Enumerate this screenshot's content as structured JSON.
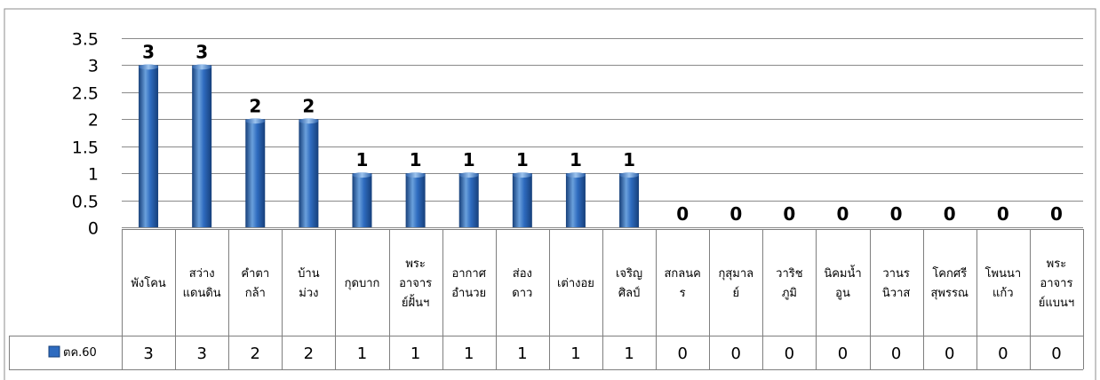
{
  "chart_data": {
    "type": "bar",
    "categories": [
      [
        "พังโคน"
      ],
      [
        "สว่าง",
        "แดนดิน"
      ],
      [
        "คำตา",
        "กล้า"
      ],
      [
        "บ้าน",
        "ม่วง"
      ],
      [
        "กุดบาก"
      ],
      [
        "พระ",
        "อาจาร",
        "ย์ฝั้นฯ"
      ],
      [
        "อากาศ",
        "อำนวย"
      ],
      [
        "ส่อง",
        "ดาว"
      ],
      [
        "เต่างอย"
      ],
      [
        "เจริญ",
        "ศิลป์"
      ],
      [
        "สกลนค",
        "ร"
      ],
      [
        "กุสุมาล",
        "ย์"
      ],
      [
        "วาริช",
        "ภูมิ"
      ],
      [
        "นิคมน้ำ",
        "อูน"
      ],
      [
        "วานร",
        "นิวาส"
      ],
      [
        "โคกศรี",
        "สุพรรณ"
      ],
      [
        "โพนนา",
        "แก้ว"
      ],
      [
        "พระ",
        "อาจาร",
        "ย์แบนฯ"
      ]
    ],
    "series": [
      {
        "name": "ตค.60",
        "values": [
          3,
          3,
          2,
          2,
          1,
          1,
          1,
          1,
          1,
          1,
          0,
          0,
          0,
          0,
          0,
          0,
          0,
          0
        ]
      }
    ],
    "data_labels": [
      "3",
      "3",
      "2",
      "2",
      "1",
      "1",
      "1",
      "1",
      "1",
      "1",
      "0",
      "0",
      "0",
      "0",
      "0",
      "0",
      "0",
      "0"
    ],
    "table_values": [
      "3",
      "3",
      "2",
      "2",
      "1",
      "1",
      "1",
      "1",
      "1",
      "1",
      "0",
      "0",
      "0",
      "0",
      "0",
      "0",
      "0",
      "0"
    ],
    "y_ticks": [
      "0",
      "0.5",
      "1",
      "1.5",
      "2",
      "2.5",
      "3",
      "3.5"
    ],
    "ylim": [
      0,
      3.5
    ],
    "grid": true,
    "legend": "data-table",
    "colors": {
      "bar_light": "#6aa0dc",
      "bar_mid": "#2e6bbf",
      "bar_dark": "#163f7a",
      "legend_icon": "#2e6bbf"
    }
  }
}
